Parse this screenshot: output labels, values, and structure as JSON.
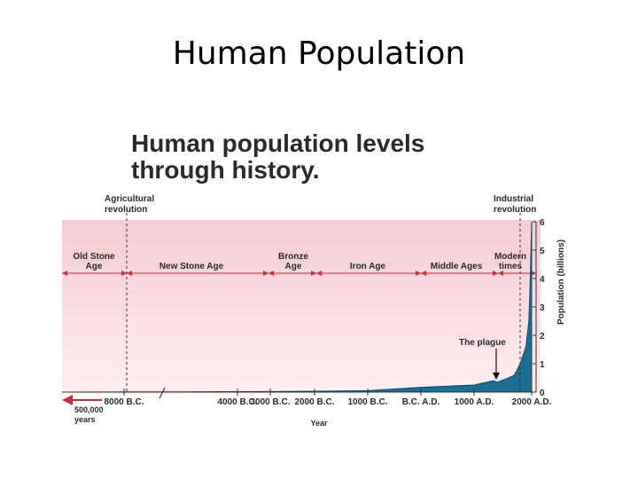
{
  "slide": {
    "title": "Human Population"
  },
  "colors": {
    "band_top": "#f6ccd2",
    "band_bottom": "#ffeef0",
    "area_fill": "#1b6f95",
    "area_stroke": "#0d4f6e",
    "arrow": "#d6263a",
    "text": "#2a2a2a"
  },
  "chart_data": {
    "type": "area",
    "title": "Human population levels through history.",
    "xlabel": "Year",
    "ylabel": "Population (billions)",
    "ylim": [
      0,
      6
    ],
    "yticks": [
      "0",
      "1",
      "2",
      "3",
      "4",
      "5",
      "6"
    ],
    "x_tick_labels": [
      "8000 B.C.",
      "4000 B.C.",
      "3000 B.C.",
      "2000 B.C.",
      "1000 B.C.",
      "B.C. A.D.",
      "1000 A.D.",
      "2000 A.D."
    ],
    "x_left_note": [
      "500,000",
      "years"
    ],
    "x_years": [
      -8000,
      -6000,
      -4000,
      -3000,
      -2000,
      -1000,
      0,
      1000,
      1340,
      1400,
      1600,
      1700,
      1800,
      1850,
      1900,
      1950,
      1975,
      2000
    ],
    "series": [
      {
        "values": [
          0.005,
          0.01,
          0.015,
          0.02,
          0.03,
          0.05,
          0.17,
          0.25,
          0.4,
          0.35,
          0.5,
          0.6,
          1.0,
          1.3,
          1.6,
          2.5,
          4.0,
          6.0
        ]
      }
    ],
    "early_values": [
      0.001,
      0.005
    ],
    "periods": [
      {
        "label": [
          "Old Stone",
          "Age"
        ]
      },
      {
        "label": [
          "New Stone Age"
        ]
      },
      {
        "label": [
          "Bronze",
          "Age"
        ]
      },
      {
        "label": [
          "Iron Age"
        ]
      },
      {
        "label": [
          "Middle Ages"
        ]
      },
      {
        "label": [
          "Modern",
          "times"
        ]
      }
    ],
    "annotations": [
      {
        "text": [
          "Agricultural",
          "revolution"
        ]
      },
      {
        "text": [
          "Industrial",
          "revolution"
        ]
      },
      {
        "text": [
          "The plague"
        ]
      }
    ]
  }
}
